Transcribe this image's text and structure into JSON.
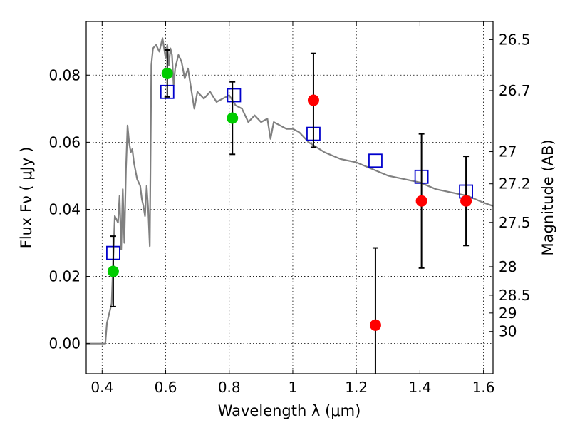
{
  "chart_data": {
    "type": "scatter",
    "title": "",
    "xlabel": "Wavelength  λ (μm)",
    "ylabel": "Flux  Fν  ( μJy )",
    "y2label": "Magnitude (AB)",
    "xlim": [
      0.35,
      1.63
    ],
    "ylim": [
      -0.009,
      0.096
    ],
    "grid": true,
    "grid_style": "dotted",
    "legend": "none",
    "x_ticks": [
      0.4,
      0.6,
      0.8,
      1.0,
      1.2,
      1.4,
      1.6
    ],
    "x_tick_labels": [
      "0.4",
      "0.6",
      "0.8",
      "1",
      "1.2",
      "1.4",
      "1.6"
    ],
    "y_ticks": [
      0.0,
      0.02,
      0.04,
      0.06,
      0.08
    ],
    "y_tick_labels": [
      "0.00",
      "0.02",
      "0.04",
      "0.06",
      "0.08"
    ],
    "y2_ticks": [
      {
        "label": "26.5",
        "flux": 0.0906
      },
      {
        "label": "26.7",
        "flux": 0.0754
      },
      {
        "label": "27",
        "flux": 0.0572
      },
      {
        "label": "27.2",
        "flux": 0.0476
      },
      {
        "label": "27.5",
        "flux": 0.0361
      },
      {
        "label": "28",
        "flux": 0.0229
      },
      {
        "label": "28.5",
        "flux": 0.0144
      },
      {
        "label": "29",
        "flux": 0.0091
      },
      {
        "label": "30",
        "flux": 0.0036
      }
    ],
    "series": [
      {
        "type": "line",
        "color": "#808080",
        "x": [
          0.35,
          0.4,
          0.41,
          0.415,
          0.42,
          0.43,
          0.44,
          0.45,
          0.455,
          0.46,
          0.465,
          0.47,
          0.475,
          0.48,
          0.485,
          0.49,
          0.495,
          0.5,
          0.51,
          0.52,
          0.525,
          0.53,
          0.535,
          0.54,
          0.545,
          0.55,
          0.555,
          0.56,
          0.57,
          0.58,
          0.59,
          0.6,
          0.605,
          0.61,
          0.615,
          0.62,
          0.625,
          0.63,
          0.64,
          0.65,
          0.66,
          0.67,
          0.68,
          0.69,
          0.7,
          0.72,
          0.74,
          0.76,
          0.78,
          0.8,
          0.82,
          0.84,
          0.86,
          0.88,
          0.9,
          0.92,
          0.93,
          0.94,
          0.96,
          0.98,
          1.0,
          1.02,
          1.05,
          1.1,
          1.15,
          1.2,
          1.25,
          1.3,
          1.35,
          1.4,
          1.45,
          1.5,
          1.55,
          1.6,
          1.63
        ],
        "y": [
          0.0,
          0.0,
          0.0,
          0.006,
          0.008,
          0.012,
          0.038,
          0.036,
          0.044,
          0.028,
          0.046,
          0.03,
          0.052,
          0.065,
          0.06,
          0.057,
          0.058,
          0.054,
          0.049,
          0.047,
          0.043,
          0.041,
          0.038,
          0.047,
          0.04,
          0.029,
          0.083,
          0.088,
          0.089,
          0.087,
          0.091,
          0.085,
          0.089,
          0.083,
          0.088,
          0.086,
          0.077,
          0.082,
          0.086,
          0.084,
          0.079,
          0.082,
          0.076,
          0.07,
          0.075,
          0.073,
          0.075,
          0.072,
          0.073,
          0.074,
          0.071,
          0.07,
          0.066,
          0.068,
          0.066,
          0.067,
          0.061,
          0.066,
          0.065,
          0.064,
          0.064,
          0.063,
          0.06,
          0.057,
          0.055,
          0.054,
          0.052,
          0.05,
          0.049,
          0.048,
          0.046,
          0.045,
          0.044,
          0.042,
          0.041
        ]
      },
      {
        "type": "scatter",
        "marker": "square-open",
        "color": "#0000cc",
        "x": [
          0.435,
          0.605,
          0.815,
          1.065,
          1.26,
          1.405,
          1.545
        ],
        "y": [
          0.027,
          0.075,
          0.074,
          0.0625,
          0.0545,
          0.0497,
          0.0453
        ]
      },
      {
        "type": "scatter",
        "marker": "circle",
        "color": "#00cc00",
        "x": [
          0.435,
          0.605,
          0.81
        ],
        "y": [
          0.0215,
          0.0805,
          0.0672
        ],
        "yerr": [
          0.0105,
          0.007,
          0.0108
        ]
      },
      {
        "type": "scatter",
        "marker": "circle",
        "color": "#ff0000",
        "x": [
          1.065,
          1.26,
          1.405,
          1.545
        ],
        "y": [
          0.0725,
          0.0055,
          0.0425,
          0.0425
        ],
        "yerr": [
          0.014,
          0.023,
          0.02,
          0.0133
        ]
      }
    ]
  }
}
